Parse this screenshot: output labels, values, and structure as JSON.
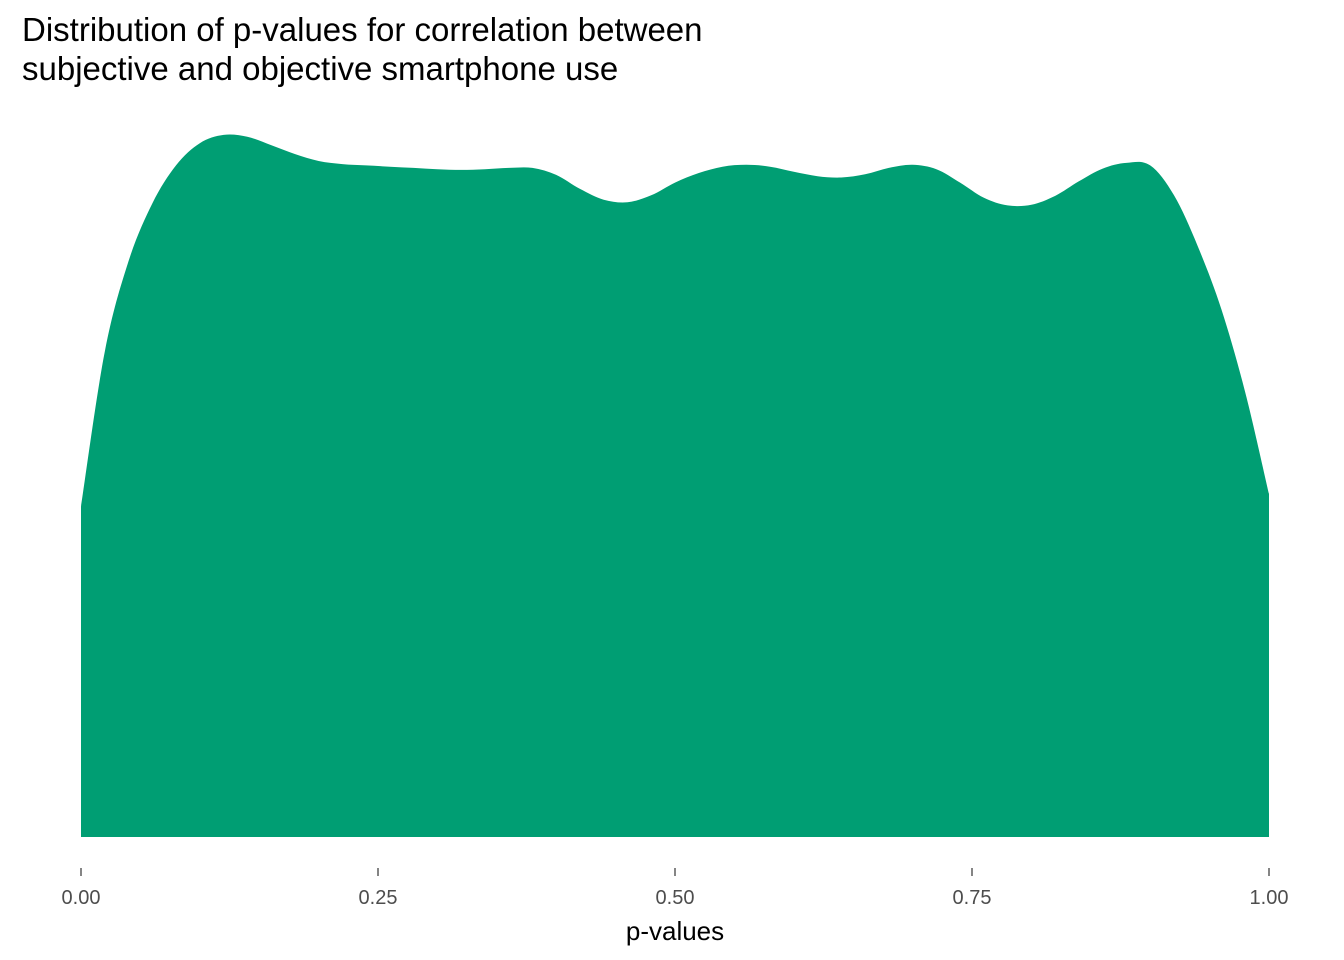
{
  "chart_data": {
    "type": "area",
    "subtype": "density",
    "title_lines": [
      "Distribution of p-values for correlation between",
      "subjective and objective smartphone use"
    ],
    "xlabel": "p-values",
    "ylabel": "",
    "xlim": [
      0,
      1
    ],
    "ylim": [
      0,
      1.108
    ],
    "x_ticks": [
      0,
      0.25,
      0.5,
      0.75,
      1
    ],
    "x_tick_labels": [
      "0.00",
      "0.25",
      "0.50",
      "0.75",
      "1.00"
    ],
    "y_axis_shown": false,
    "grid": false,
    "legend": "none",
    "fill_color": "#009E73",
    "series": [
      {
        "x": [
          0,
          0.02,
          0.04,
          0.06,
          0.08,
          0.1,
          0.12,
          0.14,
          0.16,
          0.18,
          0.2,
          0.22,
          0.24,
          0.26,
          0.28,
          0.3,
          0.32,
          0.34,
          0.36,
          0.38,
          0.4,
          0.42,
          0.44,
          0.46,
          0.48,
          0.5,
          0.52,
          0.54,
          0.56,
          0.58,
          0.6,
          0.62,
          0.64,
          0.66,
          0.68,
          0.7,
          0.72,
          0.74,
          0.76,
          0.78,
          0.8,
          0.82,
          0.84,
          0.86,
          0.88,
          0.9,
          0.92,
          0.94,
          0.96,
          0.98,
          1
        ],
        "values": [
          0.52,
          0.764,
          0.906,
          0.997,
          1.057,
          1.092,
          1.105,
          1.102,
          1.089,
          1.075,
          1.064,
          1.059,
          1.057,
          1.055,
          1.053,
          1.051,
          1.05,
          1.051,
          1.053,
          1.053,
          1.042,
          1.02,
          1.003,
          0.999,
          1.01,
          1.03,
          1.045,
          1.055,
          1.058,
          1.055,
          1.047,
          1.04,
          1.038,
          1.043,
          1.053,
          1.058,
          1.051,
          1.03,
          1.006,
          0.994,
          0.995,
          1.009,
          1.032,
          1.052,
          1.061,
          1.057,
          1.01,
          0.93,
          0.83,
          0.7,
          0.54
        ]
      }
    ]
  }
}
